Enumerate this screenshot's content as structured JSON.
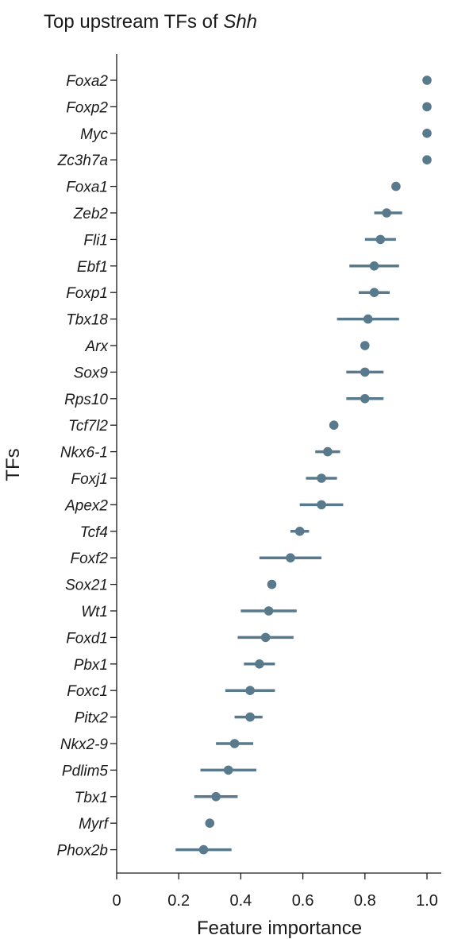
{
  "chart_data": {
    "type": "scatter",
    "title_prefix": "Top upstream TFs of ",
    "title_gene": "Shh",
    "xlabel": "Feature importance",
    "ylabel": "TFs",
    "xlim": [
      0,
      1.05
    ],
    "xticks": [
      0,
      0.2,
      0.4,
      0.6,
      0.8,
      1.0
    ],
    "xtick_labels": [
      "0",
      "0.2",
      "0.4",
      "0.6",
      "0.8",
      "1.0"
    ],
    "grid": false,
    "color": "#587a8c",
    "categories": [
      "Foxa2",
      "Foxp2",
      "Myc",
      "Zc3h7a",
      "Foxa1",
      "Zeb2",
      "Fli1",
      "Ebf1",
      "Foxp1",
      "Tbx18",
      "Arx",
      "Sox9",
      "Rps10",
      "Tcf7l2",
      "Nkx6-1",
      "Foxj1",
      "Apex2",
      "Tcf4",
      "Foxf2",
      "Sox21",
      "Wt1",
      "Foxd1",
      "Pbx1",
      "Foxc1",
      "Pitx2",
      "Nkx2-9",
      "Pdlim5",
      "Tbx1",
      "Myrf",
      "Phox2b"
    ],
    "values": [
      1.0,
      1.0,
      1.0,
      1.0,
      0.9,
      0.87,
      0.85,
      0.83,
      0.83,
      0.81,
      0.8,
      0.8,
      0.8,
      0.7,
      0.68,
      0.66,
      0.66,
      0.59,
      0.56,
      0.5,
      0.49,
      0.48,
      0.46,
      0.43,
      0.43,
      0.38,
      0.36,
      0.32,
      0.3,
      0.28
    ],
    "err_low": [
      1.0,
      1.0,
      1.0,
      1.0,
      0.9,
      0.83,
      0.8,
      0.75,
      0.78,
      0.71,
      0.8,
      0.74,
      0.74,
      0.7,
      0.64,
      0.61,
      0.59,
      0.56,
      0.46,
      0.5,
      0.4,
      0.39,
      0.41,
      0.35,
      0.38,
      0.32,
      0.27,
      0.25,
      0.3,
      0.19
    ],
    "err_high": [
      1.0,
      1.0,
      1.0,
      1.0,
      0.9,
      0.92,
      0.9,
      0.91,
      0.88,
      0.91,
      0.8,
      0.86,
      0.86,
      0.7,
      0.72,
      0.71,
      0.73,
      0.62,
      0.66,
      0.5,
      0.58,
      0.57,
      0.51,
      0.51,
      0.47,
      0.44,
      0.45,
      0.39,
      0.3,
      0.37
    ]
  }
}
